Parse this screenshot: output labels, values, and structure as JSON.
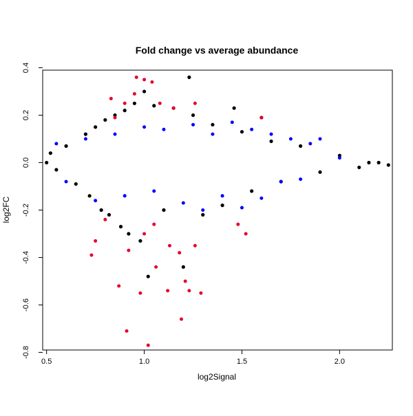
{
  "chart_data": {
    "type": "scatter",
    "title": "Fold change vs average abundance",
    "xlabel": "log2Signal",
    "ylabel": "log2FC",
    "xlim": [
      0.48,
      2.27
    ],
    "ylim": [
      -0.79,
      0.39
    ],
    "xticks": [
      0.5,
      1.0,
      1.5,
      2.0
    ],
    "xtick_labels": [
      "0.5",
      "1.0",
      "1.5",
      "2.0"
    ],
    "yticks": [
      -0.8,
      -0.6,
      -0.4,
      -0.2,
      0.0,
      0.2,
      0.4
    ],
    "ytick_labels": [
      "-0.8",
      "-0.6",
      "-0.4",
      "-0.2",
      "0.0",
      "0.2",
      "0.4"
    ],
    "grid": false,
    "colors": {
      "all": "#000000",
      "significant": "#0000ff",
      "highly_significant": "#e8002a"
    },
    "series": [
      {
        "color": "#000000",
        "description": "dense cloud of features; spread of log2FC narrows as log2Signal increases",
        "points": [
          [
            0.5,
            0.0
          ],
          [
            0.52,
            0.04
          ],
          [
            0.55,
            -0.03
          ],
          [
            0.6,
            0.07
          ],
          [
            0.65,
            -0.09
          ],
          [
            0.7,
            0.12
          ],
          [
            0.72,
            -0.14
          ],
          [
            0.75,
            0.15
          ],
          [
            0.78,
            -0.2
          ],
          [
            0.8,
            0.18
          ],
          [
            0.82,
            -0.22
          ],
          [
            0.85,
            0.2
          ],
          [
            0.88,
            -0.27
          ],
          [
            0.9,
            0.22
          ],
          [
            0.92,
            -0.3
          ],
          [
            0.95,
            0.25
          ],
          [
            0.98,
            -0.33
          ],
          [
            1.0,
            0.3
          ],
          [
            1.02,
            -0.48
          ],
          [
            1.05,
            0.24
          ],
          [
            1.1,
            -0.2
          ],
          [
            1.15,
            0.23
          ],
          [
            1.2,
            -0.44
          ],
          [
            1.23,
            0.36
          ],
          [
            1.25,
            0.2
          ],
          [
            1.3,
            -0.22
          ],
          [
            1.35,
            0.16
          ],
          [
            1.4,
            -0.18
          ],
          [
            1.46,
            0.23
          ],
          [
            1.5,
            0.13
          ],
          [
            1.55,
            -0.12
          ],
          [
            1.6,
            0.19
          ],
          [
            1.65,
            0.09
          ],
          [
            1.7,
            -0.08
          ],
          [
            1.8,
            0.07
          ],
          [
            1.9,
            -0.04
          ],
          [
            2.0,
            0.03
          ],
          [
            2.1,
            -0.02
          ],
          [
            2.15,
            0.0
          ],
          [
            2.2,
            0.0
          ],
          [
            2.25,
            -0.01
          ]
        ]
      },
      {
        "color": "#0000ff",
        "description": "significant features",
        "points": [
          [
            0.55,
            0.08
          ],
          [
            0.6,
            -0.08
          ],
          [
            0.7,
            0.1
          ],
          [
            0.75,
            -0.16
          ],
          [
            0.85,
            0.12
          ],
          [
            0.9,
            -0.14
          ],
          [
            1.0,
            0.15
          ],
          [
            1.05,
            -0.12
          ],
          [
            1.1,
            0.14
          ],
          [
            1.2,
            -0.17
          ],
          [
            1.25,
            0.16
          ],
          [
            1.3,
            -0.2
          ],
          [
            1.35,
            0.12
          ],
          [
            1.4,
            -0.14
          ],
          [
            1.45,
            0.17
          ],
          [
            1.5,
            -0.19
          ],
          [
            1.55,
            0.14
          ],
          [
            1.6,
            -0.15
          ],
          [
            1.65,
            0.12
          ],
          [
            1.7,
            -0.08
          ],
          [
            1.75,
            0.1
          ],
          [
            1.8,
            -0.07
          ],
          [
            1.85,
            0.08
          ],
          [
            1.9,
            0.1
          ],
          [
            2.0,
            0.02
          ]
        ]
      },
      {
        "color": "#e8002a",
        "description": "highly significant features",
        "points": [
          [
            0.73,
            -0.39
          ],
          [
            0.75,
            -0.33
          ],
          [
            0.8,
            -0.24
          ],
          [
            0.83,
            0.27
          ],
          [
            0.85,
            0.19
          ],
          [
            0.87,
            -0.52
          ],
          [
            0.9,
            0.25
          ],
          [
            0.91,
            -0.71
          ],
          [
            0.92,
            -0.37
          ],
          [
            0.95,
            0.29
          ],
          [
            0.96,
            0.36
          ],
          [
            0.98,
            -0.55
          ],
          [
            1.0,
            0.35
          ],
          [
            1.0,
            -0.3
          ],
          [
            1.02,
            -0.77
          ],
          [
            1.04,
            0.34
          ],
          [
            1.05,
            -0.26
          ],
          [
            1.06,
            -0.44
          ],
          [
            1.08,
            0.25
          ],
          [
            1.12,
            -0.54
          ],
          [
            1.13,
            -0.35
          ],
          [
            1.15,
            0.23
          ],
          [
            1.18,
            -0.38
          ],
          [
            1.19,
            -0.66
          ],
          [
            1.21,
            -0.5
          ],
          [
            1.23,
            -0.54
          ],
          [
            1.26,
            0.25
          ],
          [
            1.26,
            -0.35
          ],
          [
            1.29,
            -0.55
          ],
          [
            1.48,
            -0.26
          ],
          [
            1.52,
            -0.3
          ],
          [
            1.6,
            0.19
          ]
        ]
      }
    ]
  }
}
